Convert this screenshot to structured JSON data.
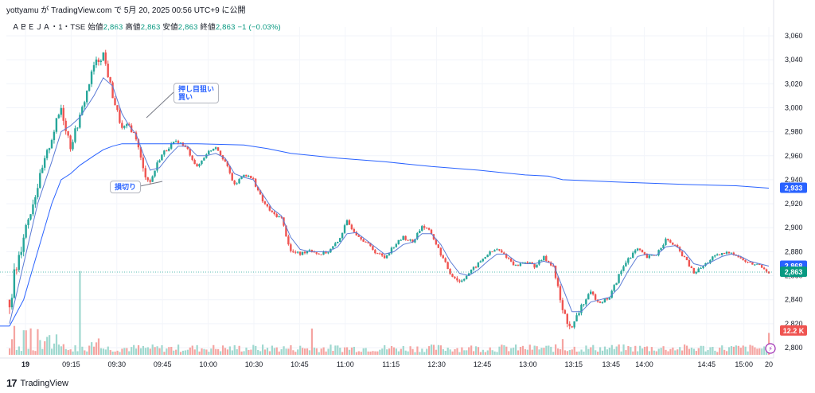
{
  "header": {
    "author": "yottyamu",
    "by": "が",
    "site": "TradingView.com",
    "de": "で",
    "date": "5月 20, 2025 00:56 UTC+9",
    "published": "に公開"
  },
  "ohlc": {
    "symbol": "ＡＢＥＪＡ・1・TSE",
    "open_label": "始値",
    "open": "2,863",
    "high_label": "高値",
    "high": "2,863",
    "low_label": "安値",
    "low": "2,863",
    "close_label": "終値",
    "close": "2,863",
    "change": "−1 (−0.03%)"
  },
  "annotations": {
    "buy": "押し目狙い\n買い",
    "stop": "損切り"
  },
  "footer": {
    "brand": "TradingView"
  },
  "colors": {
    "up": "#26a69a",
    "down": "#ef5350",
    "vwap": "#2962ff",
    "ma": "#5b7bd5",
    "vol_up": "#9fd8cf",
    "vol_down": "#f5a4a1",
    "last_price_line": "#26a69a"
  },
  "chart_data": {
    "type": "candlestick",
    "interval": "1 minute",
    "ylim": [
      2795,
      3065
    ],
    "y_ticks": [
      "3,060",
      "3,040",
      "3,020",
      "3,000",
      "2,980",
      "2,960",
      "2,940",
      "2,920",
      "2,900",
      "2,880",
      "2,860",
      "2,840",
      "2,820",
      "2,800"
    ],
    "x_ticks": [
      "19",
      "09:15",
      "09:30",
      "09:45",
      "10:00",
      "10:30",
      "10:45",
      "11:00",
      "11:15",
      "12:30",
      "12:45",
      "13:00",
      "13:15",
      "13:45",
      "14:00",
      "14:45",
      "15:00",
      "20"
    ],
    "price_badges": [
      {
        "label": "2,933",
        "value": 2933,
        "color": "#2962ff"
      },
      {
        "label": "2,868",
        "value": 2868,
        "color": "#2962ff"
      },
      {
        "label": "2,863",
        "value": 2863,
        "color": "#089981"
      },
      {
        "label": "12.2 K",
        "value": 2814,
        "color": "#ef5350"
      }
    ],
    "anchors": [
      [
        0,
        2840,
        12,
        1
      ],
      [
        6,
        2895,
        9,
        1
      ],
      [
        12,
        2935,
        6,
        1
      ],
      [
        18,
        2975,
        5,
        1
      ],
      [
        22,
        3000,
        7,
        1
      ],
      [
        26,
        2968,
        5,
        0
      ],
      [
        30,
        2992,
        4,
        1
      ],
      [
        36,
        3035,
        5,
        1
      ],
      [
        40,
        3045,
        5,
        1
      ],
      [
        44,
        3010,
        4,
        0
      ],
      [
        48,
        2982,
        4,
        0
      ],
      [
        51,
        2985,
        3,
        1
      ],
      [
        54,
        2975,
        3,
        0
      ],
      [
        57,
        2948,
        5,
        0
      ],
      [
        60,
        2938,
        4,
        0
      ],
      [
        64,
        2958,
        3,
        1
      ],
      [
        68,
        2968,
        3,
        1
      ],
      [
        72,
        2972,
        2,
        1
      ],
      [
        76,
        2965,
        2,
        0
      ],
      [
        80,
        2950,
        2,
        0
      ],
      [
        84,
        2962,
        2,
        1
      ],
      [
        88,
        2968,
        2,
        1
      ],
      [
        92,
        2955,
        2,
        0
      ],
      [
        96,
        2935,
        2,
        0
      ],
      [
        100,
        2945,
        2,
        1
      ],
      [
        104,
        2940,
        2,
        0
      ],
      [
        108,
        2922,
        2,
        0
      ],
      [
        112,
        2912,
        2,
        0
      ],
      [
        116,
        2908,
        2,
        0
      ],
      [
        120,
        2880,
        3,
        0
      ],
      [
        124,
        2878,
        2,
        0
      ],
      [
        128,
        2882,
        2,
        1
      ],
      [
        132,
        2878,
        2,
        0
      ],
      [
        136,
        2880,
        2,
        1
      ],
      [
        140,
        2888,
        2,
        1
      ],
      [
        144,
        2905,
        2,
        1
      ],
      [
        148,
        2895,
        2,
        0
      ],
      [
        152,
        2888,
        2,
        0
      ],
      [
        156,
        2880,
        2,
        0
      ],
      [
        160,
        2875,
        2,
        0
      ],
      [
        164,
        2885,
        2,
        1
      ],
      [
        168,
        2892,
        2,
        1
      ],
      [
        172,
        2888,
        2,
        0
      ],
      [
        176,
        2902,
        3,
        1
      ],
      [
        180,
        2895,
        2,
        0
      ],
      [
        184,
        2878,
        2,
        0
      ],
      [
        188,
        2862,
        2,
        0
      ],
      [
        192,
        2855,
        3,
        0
      ],
      [
        196,
        2862,
        2,
        1
      ],
      [
        200,
        2870,
        2,
        1
      ],
      [
        204,
        2878,
        2,
        1
      ],
      [
        208,
        2882,
        2,
        1
      ],
      [
        212,
        2876,
        2,
        0
      ],
      [
        216,
        2868,
        2,
        0
      ],
      [
        220,
        2872,
        2,
        1
      ],
      [
        224,
        2868,
        2,
        0
      ],
      [
        228,
        2875,
        2,
        1
      ],
      [
        232,
        2868,
        2,
        0
      ],
      [
        236,
        2830,
        6,
        0
      ],
      [
        240,
        2815,
        5,
        0
      ],
      [
        244,
        2835,
        4,
        1
      ],
      [
        248,
        2845,
        3,
        1
      ],
      [
        252,
        2838,
        2,
        0
      ],
      [
        256,
        2842,
        2,
        1
      ],
      [
        260,
        2860,
        3,
        1
      ],
      [
        264,
        2875,
        3,
        1
      ],
      [
        268,
        2882,
        2,
        1
      ],
      [
        272,
        2875,
        2,
        0
      ],
      [
        276,
        2878,
        2,
        1
      ],
      [
        280,
        2890,
        2,
        1
      ],
      [
        284,
        2885,
        2,
        0
      ],
      [
        288,
        2875,
        2,
        0
      ],
      [
        292,
        2862,
        2,
        0
      ],
      [
        296,
        2868,
        2,
        1
      ],
      [
        300,
        2875,
        2,
        1
      ],
      [
        304,
        2878,
        2,
        1
      ],
      [
        308,
        2880,
        2,
        1
      ],
      [
        312,
        2874,
        2,
        0
      ],
      [
        316,
        2870,
        2,
        0
      ],
      [
        320,
        2869,
        2,
        0
      ],
      [
        324,
        2863,
        2,
        0
      ]
    ],
    "ma": [
      [
        0,
        2820
      ],
      [
        6,
        2870
      ],
      [
        12,
        2920
      ],
      [
        18,
        2955
      ],
      [
        22,
        2980
      ],
      [
        26,
        2985
      ],
      [
        30,
        2992
      ],
      [
        36,
        3010
      ],
      [
        40,
        3025
      ],
      [
        44,
        3018
      ],
      [
        48,
        2995
      ],
      [
        51,
        2985
      ],
      [
        54,
        2978
      ],
      [
        57,
        2962
      ],
      [
        60,
        2948
      ],
      [
        64,
        2950
      ],
      [
        68,
        2960
      ],
      [
        72,
        2968
      ],
      [
        76,
        2968
      ],
      [
        80,
        2960
      ],
      [
        84,
        2960
      ],
      [
        88,
        2962
      ],
      [
        92,
        2958
      ],
      [
        96,
        2945
      ],
      [
        100,
        2942
      ],
      [
        104,
        2940
      ],
      [
        108,
        2928
      ],
      [
        112,
        2916
      ],
      [
        116,
        2910
      ],
      [
        120,
        2892
      ],
      [
        124,
        2882
      ],
      [
        128,
        2880
      ],
      [
        132,
        2880
      ],
      [
        136,
        2880
      ],
      [
        140,
        2884
      ],
      [
        144,
        2895
      ],
      [
        148,
        2896
      ],
      [
        152,
        2890
      ],
      [
        156,
        2884
      ],
      [
        160,
        2878
      ],
      [
        164,
        2880
      ],
      [
        168,
        2886
      ],
      [
        172,
        2888
      ],
      [
        176,
        2895
      ],
      [
        180,
        2895
      ],
      [
        184,
        2886
      ],
      [
        188,
        2872
      ],
      [
        192,
        2862
      ],
      [
        196,
        2860
      ],
      [
        200,
        2865
      ],
      [
        204,
        2872
      ],
      [
        208,
        2878
      ],
      [
        212,
        2878
      ],
      [
        216,
        2872
      ],
      [
        220,
        2870
      ],
      [
        224,
        2870
      ],
      [
        228,
        2872
      ],
      [
        232,
        2870
      ],
      [
        236,
        2850
      ],
      [
        240,
        2830
      ],
      [
        244,
        2830
      ],
      [
        248,
        2838
      ],
      [
        252,
        2840
      ],
      [
        256,
        2842
      ],
      [
        260,
        2850
      ],
      [
        264,
        2864
      ],
      [
        268,
        2876
      ],
      [
        272,
        2878
      ],
      [
        276,
        2877
      ],
      [
        280,
        2884
      ],
      [
        284,
        2885
      ],
      [
        288,
        2880
      ],
      [
        292,
        2870
      ],
      [
        296,
        2868
      ],
      [
        300,
        2872
      ],
      [
        304,
        2876
      ],
      [
        308,
        2878
      ],
      [
        312,
        2876
      ],
      [
        316,
        2872
      ],
      [
        320,
        2870
      ],
      [
        324,
        2868
      ]
    ],
    "vwap": [
      [
        0,
        2818
      ],
      [
        6,
        2840
      ],
      [
        12,
        2880
      ],
      [
        18,
        2920
      ],
      [
        22,
        2940
      ],
      [
        26,
        2945
      ],
      [
        30,
        2952
      ],
      [
        36,
        2960
      ],
      [
        40,
        2965
      ],
      [
        44,
        2968
      ],
      [
        48,
        2970
      ],
      [
        60,
        2970
      ],
      [
        80,
        2970
      ],
      [
        100,
        2969
      ],
      [
        110,
        2966
      ],
      [
        120,
        2962
      ],
      [
        140,
        2958
      ],
      [
        160,
        2955
      ],
      [
        180,
        2951
      ],
      [
        200,
        2948
      ],
      [
        220,
        2944
      ],
      [
        230,
        2943
      ],
      [
        236,
        2940
      ],
      [
        260,
        2938
      ],
      [
        290,
        2936
      ],
      [
        310,
        2935
      ],
      [
        324,
        2933
      ]
    ],
    "volume_peaks": [
      [
        2,
        0.33
      ],
      [
        30,
        0.92
      ],
      [
        129,
        0.3
      ],
      [
        236,
        0.18
      ],
      [
        324,
        0.25
      ]
    ]
  }
}
